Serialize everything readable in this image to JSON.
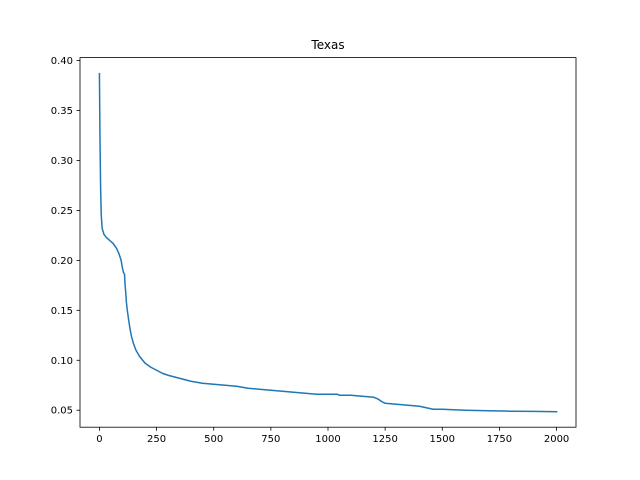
{
  "chart_data": {
    "type": "line",
    "title": "Texas",
    "xlabel": "",
    "ylabel": "",
    "xlim": [
      -85,
      2085
    ],
    "ylim": [
      0.033,
      0.403
    ],
    "x_ticks": [
      0,
      250,
      500,
      750,
      1000,
      1250,
      1500,
      1750,
      2000
    ],
    "x_tick_labels": [
      "0",
      "250",
      "500",
      "750",
      "1000",
      "1250",
      "1500",
      "1750",
      "2000"
    ],
    "y_ticks": [
      0.05,
      0.1,
      0.15,
      0.2,
      0.25,
      0.3,
      0.35,
      0.4
    ],
    "y_tick_labels": [
      "0.05",
      "0.10",
      "0.15",
      "0.20",
      "0.25",
      "0.30",
      "0.35",
      "0.40"
    ],
    "grid": false,
    "line_color": "#1f77b4",
    "series": [
      {
        "x": [
          0,
          2,
          5,
          8,
          12,
          20,
          30,
          45,
          60,
          75,
          85,
          95,
          100,
          103,
          105,
          110,
          112,
          115,
          118,
          122,
          125,
          130,
          135,
          140,
          150,
          160,
          175,
          200,
          225,
          250,
          275,
          300,
          350,
          400,
          450,
          500,
          550,
          600,
          650,
          700,
          750,
          800,
          850,
          900,
          950,
          1000,
          1040,
          1050,
          1100,
          1150,
          1200,
          1220,
          1240,
          1250,
          1300,
          1350,
          1400,
          1420,
          1440,
          1460,
          1500,
          1600,
          1700,
          1800,
          1900,
          2000
        ],
        "y": [
          0.387,
          0.33,
          0.275,
          0.245,
          0.232,
          0.226,
          0.223,
          0.22,
          0.217,
          0.212,
          0.207,
          0.2,
          0.193,
          0.19,
          0.188,
          0.186,
          0.176,
          0.168,
          0.158,
          0.15,
          0.145,
          0.137,
          0.13,
          0.124,
          0.116,
          0.11,
          0.104,
          0.097,
          0.093,
          0.09,
          0.087,
          0.085,
          0.082,
          0.079,
          0.077,
          0.076,
          0.075,
          0.074,
          0.072,
          0.071,
          0.07,
          0.069,
          0.068,
          0.067,
          0.066,
          0.066,
          0.066,
          0.065,
          0.065,
          0.064,
          0.063,
          0.061,
          0.058,
          0.057,
          0.056,
          0.055,
          0.054,
          0.053,
          0.052,
          0.051,
          0.051,
          0.05,
          0.0495,
          0.049,
          0.0488,
          0.0485
        ]
      }
    ]
  }
}
